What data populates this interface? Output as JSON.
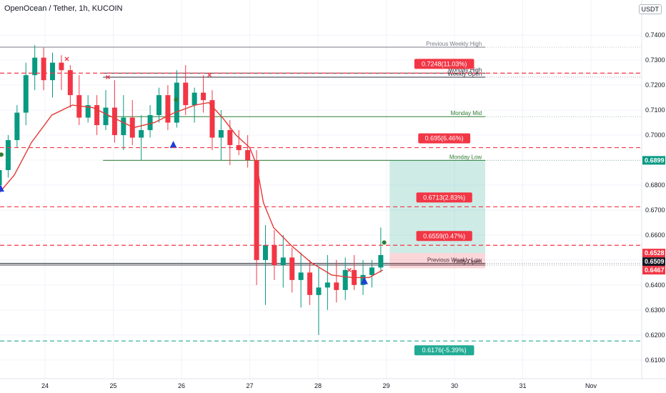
{
  "header": {
    "title": "OpenOcean / Tether, 1h, KUCOIN",
    "currency": "USDT"
  },
  "chart_data": {
    "type": "candlestick",
    "title": "OpenOcean / Tether, 1h, KUCOIN",
    "ylim": [
      0.6065,
      0.7455
    ],
    "y_ticks": [
      0.74,
      0.73,
      0.72,
      0.71,
      0.7,
      0.69,
      0.68,
      0.67,
      0.66,
      0.65,
      0.64,
      0.63,
      0.62,
      0.61
    ],
    "x_ticks": [
      {
        "label": "24",
        "day": 0
      },
      {
        "label": "25",
        "day": 1
      },
      {
        "label": "26",
        "day": 2
      },
      {
        "label": "27",
        "day": 3
      },
      {
        "label": "28",
        "day": 4
      },
      {
        "label": "29",
        "day": 5
      },
      {
        "label": "30",
        "day": 6
      },
      {
        "label": "31",
        "day": 7
      },
      {
        "label": "Nov",
        "day": 8
      }
    ],
    "candles": [
      [
        -0.67,
        0.68,
        0.69,
        0.671,
        0.686
      ],
      [
        -0.54,
        0.686,
        0.7,
        0.683,
        0.698
      ],
      [
        -0.41,
        0.698,
        0.712,
        0.695,
        0.709
      ],
      [
        -0.28,
        0.709,
        0.729,
        0.704,
        0.724
      ],
      [
        -0.15,
        0.724,
        0.736,
        0.718,
        0.731
      ],
      [
        -0.02,
        0.731,
        0.735,
        0.718,
        0.722
      ],
      [
        0.11,
        0.722,
        0.733,
        0.715,
        0.729
      ],
      [
        0.24,
        0.729,
        0.732,
        0.718,
        0.726
      ],
      [
        0.37,
        0.726,
        0.728,
        0.711,
        0.716
      ],
      [
        0.5,
        0.716,
        0.724,
        0.704,
        0.707
      ],
      [
        0.63,
        0.707,
        0.716,
        0.705,
        0.712
      ],
      [
        0.76,
        0.712,
        0.716,
        0.7,
        0.704
      ],
      [
        0.89,
        0.704,
        0.718,
        0.702,
        0.711
      ],
      [
        1.02,
        0.711,
        0.722,
        0.697,
        0.7
      ],
      [
        1.15,
        0.7,
        0.716,
        0.694,
        0.707
      ],
      [
        1.28,
        0.707,
        0.714,
        0.696,
        0.699
      ],
      [
        1.41,
        0.699,
        0.708,
        0.69,
        0.702
      ],
      [
        1.54,
        0.702,
        0.712,
        0.699,
        0.708
      ],
      [
        1.67,
        0.708,
        0.719,
        0.705,
        0.716
      ],
      [
        1.8,
        0.716,
        0.72,
        0.702,
        0.705
      ],
      [
        1.93,
        0.705,
        0.726,
        0.703,
        0.721
      ],
      [
        2.06,
        0.721,
        0.728,
        0.708,
        0.712
      ],
      [
        2.19,
        0.712,
        0.719,
        0.705,
        0.717
      ],
      [
        2.32,
        0.717,
        0.724,
        0.709,
        0.714
      ],
      [
        2.45,
        0.714,
        0.718,
        0.694,
        0.699
      ],
      [
        2.58,
        0.699,
        0.71,
        0.69,
        0.702
      ],
      [
        2.71,
        0.702,
        0.706,
        0.688,
        0.696
      ],
      [
        2.84,
        0.696,
        0.702,
        0.692,
        0.694
      ],
      [
        2.97,
        0.694,
        0.7,
        0.687,
        0.69
      ],
      [
        3.1,
        0.69,
        0.694,
        0.64,
        0.65
      ],
      [
        3.23,
        0.65,
        0.664,
        0.632,
        0.656
      ],
      [
        3.36,
        0.656,
        0.662,
        0.642,
        0.648
      ],
      [
        3.49,
        0.648,
        0.66,
        0.639,
        0.651
      ],
      [
        3.62,
        0.651,
        0.655,
        0.637,
        0.642
      ],
      [
        3.75,
        0.642,
        0.653,
        0.631,
        0.645
      ],
      [
        3.88,
        0.645,
        0.65,
        0.632,
        0.636
      ],
      [
        4.01,
        0.636,
        0.647,
        0.62,
        0.639
      ],
      [
        4.14,
        0.639,
        0.652,
        0.63,
        0.641
      ],
      [
        4.27,
        0.641,
        0.65,
        0.633,
        0.638
      ],
      [
        4.4,
        0.638,
        0.651,
        0.634,
        0.646
      ],
      [
        4.53,
        0.646,
        0.652,
        0.638,
        0.64
      ],
      [
        4.66,
        0.64,
        0.65,
        0.636,
        0.644
      ],
      [
        4.79,
        0.644,
        0.65,
        0.639,
        0.647
      ],
      [
        4.92,
        0.647,
        0.663,
        0.645,
        0.652
      ]
    ],
    "ma_line": [
      [
        -0.7,
        0.676
      ],
      [
        -0.45,
        0.684
      ],
      [
        -0.2,
        0.697
      ],
      [
        0.1,
        0.708
      ],
      [
        0.4,
        0.712
      ],
      [
        0.7,
        0.711
      ],
      [
        1.0,
        0.707
      ],
      [
        1.3,
        0.703
      ],
      [
        1.6,
        0.705
      ],
      [
        1.9,
        0.709
      ],
      [
        2.2,
        0.712
      ],
      [
        2.4,
        0.713
      ],
      [
        2.6,
        0.707
      ],
      [
        2.8,
        0.7
      ],
      [
        3.0,
        0.695
      ],
      [
        3.1,
        0.688
      ],
      [
        3.2,
        0.673
      ],
      [
        3.35,
        0.663
      ],
      [
        3.6,
        0.656
      ],
      [
        3.9,
        0.649
      ],
      [
        4.2,
        0.644
      ],
      [
        4.5,
        0.643
      ],
      [
        4.75,
        0.643
      ],
      [
        4.95,
        0.646
      ]
    ],
    "horizontal_levels": [
      {
        "label": "Previous Weekly High",
        "value": 0.7352,
        "style": "solid-gray",
        "x_from": -0.7
      },
      {
        "label": "Monday High",
        "value": 0.7248,
        "style": "solid-dark",
        "x_from": 0.85
      },
      {
        "label": "Weekly Open",
        "value": 0.7232,
        "style": "solid-dark",
        "x_from": 0.85
      },
      {
        "label": "Monday Mid",
        "value": 0.7074,
        "style": "solid-green",
        "x_from": 0.85
      },
      {
        "label": "Monday Low",
        "value": 0.6899,
        "style": "solid-green",
        "x_from": 0.85
      },
      {
        "label": "Previous Weekly Low",
        "value": 0.6487,
        "style": "solid-dark",
        "x_from": -0.7
      },
      {
        "label": "Daily Open",
        "value": 0.648,
        "style": "solid-dark",
        "x_from": -0.7
      }
    ],
    "target_levels": [
      {
        "label": "0.7248(11.03%)",
        "value": 0.7248,
        "color": "#f23645"
      },
      {
        "label": "0.695(6.46%)",
        "value": 0.695,
        "color": "#f23645"
      },
      {
        "label": "0.6713(2.83%)",
        "value": 0.6713,
        "color": "#f23645"
      },
      {
        "label": "0.6559(0.47%)",
        "value": 0.6559,
        "color": "#f23645"
      },
      {
        "label": "0.6176(-5.39%)",
        "value": 0.6176,
        "color": "#22ab94"
      }
    ],
    "position": {
      "entry": 0.6528,
      "target": 0.6899,
      "stop": 0.6467,
      "x_from": 5.05,
      "x_to": 6.45
    },
    "price_labels": [
      {
        "text": "0.6899",
        "value": 0.6899,
        "color": "#089981"
      },
      {
        "text": "0.6528",
        "value": 0.6528,
        "color": "#f23645"
      },
      {
        "text": "0.6509",
        "value": 0.6509,
        "color": "#131722"
      },
      {
        "text": "0.6467",
        "value": 0.6467,
        "color": "#f23645"
      }
    ],
    "markers": [
      {
        "type": "triangle-up",
        "day": -0.65,
        "value": 0.6785,
        "color": "#1e3ed8"
      },
      {
        "type": "triangle-up",
        "day": 1.88,
        "value": 0.696,
        "color": "#1e3ed8"
      },
      {
        "type": "triangle-up",
        "day": 4.68,
        "value": 0.6415,
        "color": "#1e3ed8"
      },
      {
        "type": "cross",
        "day": 0.32,
        "value": 0.7305,
        "color": "#f23645"
      },
      {
        "type": "cross",
        "day": 0.92,
        "value": 0.7232,
        "color": "#f23645"
      },
      {
        "type": "cross",
        "day": 2.41,
        "value": 0.724,
        "color": "#f23645"
      },
      {
        "type": "cross",
        "day": 4.46,
        "value": 0.6459,
        "color": "#f23645"
      },
      {
        "type": "dot",
        "day": -0.64,
        "value": 0.6922,
        "color": "#2e7d32"
      },
      {
        "type": "dot",
        "day": 1.92,
        "value": 0.7142,
        "color": "#2e7d32"
      },
      {
        "type": "dot",
        "day": 4.97,
        "value": 0.657,
        "color": "#2e7d32"
      }
    ]
  }
}
